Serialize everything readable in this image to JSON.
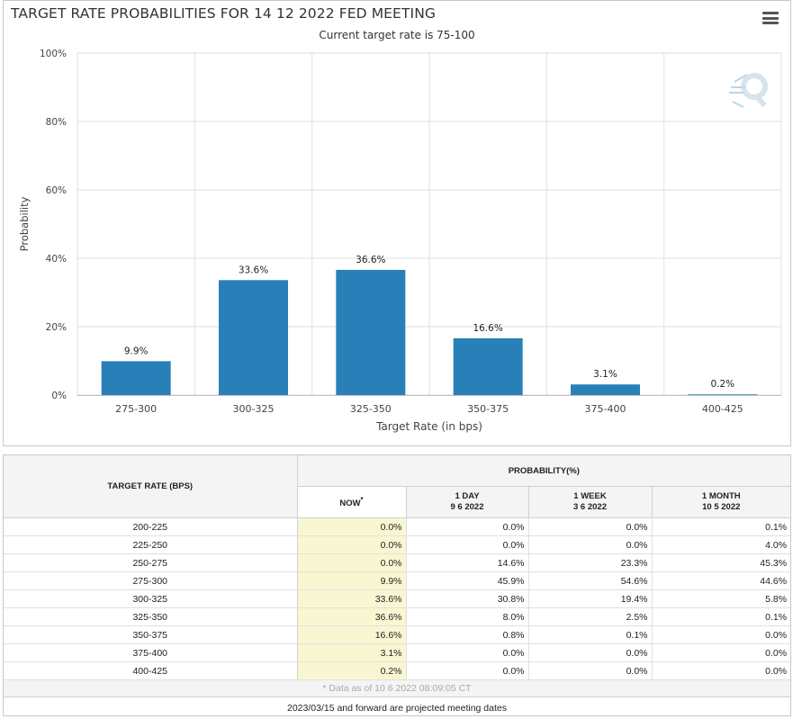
{
  "chart_data": {
    "type": "bar",
    "title": "TARGET RATE PROBABILITIES FOR 14 12 2022 FED MEETING",
    "subtitle": "Current target rate is 75-100",
    "xlabel": "Target Rate (in bps)",
    "ylabel": "Probability",
    "categories": [
      "275-300",
      "300-325",
      "325-350",
      "350-375",
      "375-400",
      "400-425"
    ],
    "values": [
      9.9,
      33.6,
      36.6,
      16.6,
      3.1,
      0.2
    ],
    "data_labels": [
      "9.9%",
      "33.6%",
      "36.6%",
      "16.6%",
      "3.1%",
      "0.2%"
    ],
    "yticks": [
      "0%",
      "20%",
      "40%",
      "60%",
      "80%",
      "100%"
    ],
    "ylim": [
      0,
      100
    ],
    "grid": true,
    "legend": "none",
    "bar_color": "#2980b9"
  },
  "toolbar": {
    "menu_icon": "hamburger-menu-icon"
  },
  "watermark_icon": "cme-q-logo-icon",
  "table": {
    "rate_header": "TARGET RATE (BPS)",
    "prob_header": "PROBABILITY(%)",
    "columns": [
      {
        "line1": "NOW",
        "line2": "",
        "mark": "*"
      },
      {
        "line1": "1 DAY",
        "line2": "9 6 2022",
        "mark": ""
      },
      {
        "line1": "1 WEEK",
        "line2": "3 6 2022",
        "mark": ""
      },
      {
        "line1": "1 MONTH",
        "line2": "10 5 2022",
        "mark": ""
      }
    ],
    "rows": [
      {
        "rate": "200-225",
        "values": [
          "0.0%",
          "0.0%",
          "0.0%",
          "0.1%"
        ]
      },
      {
        "rate": "225-250",
        "values": [
          "0.0%",
          "0.0%",
          "0.0%",
          "4.0%"
        ]
      },
      {
        "rate": "250-275",
        "values": [
          "0.0%",
          "14.6%",
          "23.3%",
          "45.3%"
        ]
      },
      {
        "rate": "275-300",
        "values": [
          "9.9%",
          "45.9%",
          "54.6%",
          "44.6%"
        ]
      },
      {
        "rate": "300-325",
        "values": [
          "33.6%",
          "30.8%",
          "19.4%",
          "5.8%"
        ]
      },
      {
        "rate": "325-350",
        "values": [
          "36.6%",
          "8.0%",
          "2.5%",
          "0.1%"
        ]
      },
      {
        "rate": "350-375",
        "values": [
          "16.6%",
          "0.8%",
          "0.1%",
          "0.0%"
        ]
      },
      {
        "rate": "375-400",
        "values": [
          "3.1%",
          "0.0%",
          "0.0%",
          "0.0%"
        ]
      },
      {
        "rate": "400-425",
        "values": [
          "0.2%",
          "0.0%",
          "0.0%",
          "0.0%"
        ]
      }
    ],
    "footnote": "* Data as of 10 6 2022 08:09:05 CT",
    "projected_note": "2023/03/15 and forward are projected meeting dates"
  }
}
